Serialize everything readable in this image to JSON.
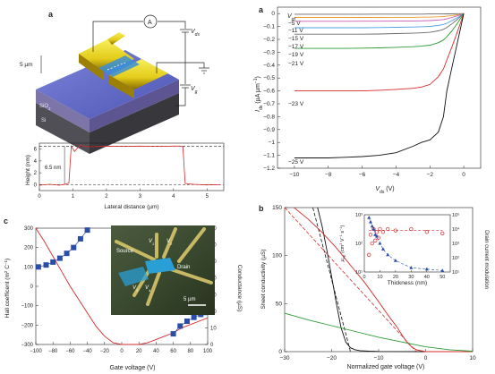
{
  "panel_labels": {
    "device_a": "a",
    "iv_a": "a",
    "hall_c": "c",
    "cond_b": "b"
  },
  "device_schematic": {
    "ammeter": "A",
    "vds_label": "V",
    "vds_sub": "ds",
    "vg_label": "V",
    "vg_sub": "g",
    "scale_label": "5 µm",
    "layer_sio2": "SiO",
    "layer_sio2_sub": "2",
    "layer_si": "Si"
  },
  "colors": {
    "hall_points": "#2a4ea8",
    "hall_curve": "#d62a2a",
    "accent_green": "#2a9a35",
    "black_curve": "#111111"
  },
  "chart_data": [
    {
      "id": "height_profile",
      "type": "line",
      "xlabel": "Lateral distance (µm)",
      "ylabel": "Height (nm)",
      "xlim": [
        0,
        5.5
      ],
      "ylim": [
        -1,
        7
      ],
      "xticks": [
        0,
        1,
        2,
        3,
        4,
        5
      ],
      "yticks": [
        0,
        2,
        4,
        6
      ],
      "annotation": "6.5 nm",
      "series": [
        {
          "color": "#d62a2a",
          "x": [
            0,
            0.3,
            0.6,
            0.8,
            0.88,
            0.95,
            1.05,
            1.2,
            1.5,
            2.0,
            2.5,
            3.0,
            3.5,
            4.0,
            4.2,
            4.28,
            4.35,
            4.6,
            5.0,
            5.4
          ],
          "y": [
            -0.1,
            0.05,
            -0.1,
            0.1,
            0.3,
            6.5,
            5.6,
            6.6,
            6.4,
            6.5,
            6.45,
            6.5,
            6.45,
            6.5,
            6.5,
            6.4,
            0.2,
            0.05,
            -0.05,
            0.0
          ]
        }
      ]
    },
    {
      "id": "output_curves",
      "type": "line",
      "xlabel": "V",
      "xlabel_sub": "ds",
      "xlabel_unit": " (V)",
      "ylabel": "I",
      "ylabel_sub": "ds",
      "ylabel_unit": " (µA µm",
      "ylabel_sup": "−1",
      "ylabel_close": ")",
      "legend_title": "V",
      "legend_title_sub": "gt",
      "xlim": [
        -11,
        1
      ],
      "ylim": [
        -1.2,
        0.05
      ],
      "xticks": [
        -10,
        -8,
        -6,
        -4,
        -2,
        0
      ],
      "yticks": [
        0,
        -0.1,
        -0.2,
        -0.3,
        -0.4,
        -0.5,
        -0.6,
        -0.7,
        -0.8,
        -0.9,
        -1.0,
        -1.1,
        -1.2
      ],
      "x": [
        -10,
        -9,
        -8,
        -7,
        -6,
        -5,
        -4,
        -3,
        -2.5,
        -2,
        -1.5,
        -1.2,
        -1,
        -0.7,
        -0.4,
        -0.2,
        0
      ],
      "series": [
        {
          "name": "−5 V",
          "color": "#666666",
          "y": [
            -0.005,
            -0.005,
            -0.005,
            -0.005,
            -0.005,
            -0.004,
            -0.004,
            -0.004,
            -0.004,
            -0.003,
            -0.003,
            -0.003,
            -0.002,
            -0.002,
            -0.001,
            -0.0005,
            0
          ]
        },
        {
          "name": "−11 V",
          "color": "#e89a2a",
          "y": [
            -0.03,
            -0.03,
            -0.03,
            -0.03,
            -0.03,
            -0.03,
            -0.029,
            -0.029,
            -0.028,
            -0.027,
            -0.025,
            -0.023,
            -0.02,
            -0.015,
            -0.009,
            -0.005,
            0
          ]
        },
        {
          "name": "−15 V",
          "color": "#c85ab4",
          "y": [
            -0.06,
            -0.06,
            -0.06,
            -0.06,
            -0.059,
            -0.059,
            -0.058,
            -0.057,
            -0.056,
            -0.054,
            -0.05,
            -0.046,
            -0.04,
            -0.03,
            -0.018,
            -0.009,
            0
          ]
        },
        {
          "name": "−17 V",
          "color": "#4aa0e8",
          "y": [
            -0.11,
            -0.11,
            -0.11,
            -0.11,
            -0.11,
            -0.108,
            -0.106,
            -0.104,
            -0.102,
            -0.099,
            -0.092,
            -0.084,
            -0.075,
            -0.055,
            -0.033,
            -0.017,
            0
          ]
        },
        {
          "name": "−19 V",
          "color": "#6a6a6a",
          "y": [
            -0.16,
            -0.16,
            -0.16,
            -0.16,
            -0.16,
            -0.158,
            -0.155,
            -0.152,
            -0.149,
            -0.145,
            -0.134,
            -0.122,
            -0.108,
            -0.08,
            -0.048,
            -0.024,
            0
          ]
        },
        {
          "name": "−21 V",
          "color": "#2a9a35",
          "y": [
            -0.27,
            -0.27,
            -0.27,
            -0.27,
            -0.268,
            -0.266,
            -0.262,
            -0.257,
            -0.253,
            -0.245,
            -0.226,
            -0.205,
            -0.18,
            -0.135,
            -0.08,
            -0.04,
            0
          ]
        },
        {
          "name": "−23 V",
          "color": "#d62a2a",
          "y": [
            -0.6,
            -0.6,
            -0.6,
            -0.6,
            -0.6,
            -0.595,
            -0.588,
            -0.58,
            -0.57,
            -0.55,
            -0.49,
            -0.43,
            -0.36,
            -0.26,
            -0.15,
            -0.075,
            0
          ]
        },
        {
          "name": "−25 V",
          "color": "#111111",
          "y": [
            -1.12,
            -1.12,
            -1.12,
            -1.115,
            -1.11,
            -1.1,
            -1.08,
            -1.03,
            -1.0,
            -0.98,
            -0.92,
            -0.8,
            -0.6,
            -0.42,
            -0.24,
            -0.12,
            0
          ]
        }
      ]
    },
    {
      "id": "hall_conductance",
      "type": "scatter",
      "xlabel": "Gate voltage (V)",
      "ylabel_left": "Hall coefficent (m",
      "ylabel_left_sup": "2",
      "ylabel_left_mid": " C",
      "ylabel_left_sup2": "−1",
      "ylabel_left_close": ")",
      "ylabel_right": "Conductance (µS)",
      "xlim": [
        -100,
        100
      ],
      "ylim_left": [
        -300,
        300
      ],
      "ylim_right": [
        0,
        70
      ],
      "xticks": [
        -100,
        -80,
        -60,
        -40,
        -20,
        0,
        20,
        40,
        60,
        80,
        100
      ],
      "yticks_left": [
        -300,
        -200,
        -100,
        0,
        100,
        200,
        300
      ],
      "yticks_right": [
        0,
        10,
        20,
        30,
        40,
        50,
        60,
        70
      ],
      "hall_series": {
        "x": [
          -97,
          -88,
          -80,
          -72,
          -64,
          -56,
          -48,
          -40,
          60,
          68,
          76,
          84,
          92,
          97
        ],
        "y": [
          100,
          110,
          125,
          145,
          170,
          200,
          245,
          290,
          -245,
          -205,
          -180,
          -160,
          -145,
          -135
        ]
      },
      "conductance_series": {
        "x": [
          -100,
          -90,
          -80,
          -70,
          -60,
          -50,
          -40,
          -30,
          -20,
          -10,
          0,
          10,
          20,
          30,
          40,
          50,
          60,
          70,
          80,
          90,
          100
        ],
        "y": [
          70,
          62,
          53,
          44,
          35,
          27,
          19,
          11,
          5,
          1,
          0,
          0,
          0,
          1,
          3,
          5,
          7,
          10,
          12,
          14,
          16
        ]
      },
      "inset_labels": {
        "source": "Source",
        "drain": "Drain",
        "v1": "V",
        "v1_sub": "1",
        "v2": "V",
        "v2_sub": "2",
        "v3": "V",
        "v3_sub": "3",
        "v4": "V",
        "v4_sub": "4",
        "scale": "5 µm"
      }
    },
    {
      "id": "sheet_conductivity",
      "type": "line",
      "xlabel": "Normalized gate voltage (V)",
      "ylabel": "Sheet conductivity (µS)",
      "xlim": [
        -30,
        10
      ],
      "ylim": [
        0,
        150
      ],
      "xticks": [
        -30,
        -20,
        -10,
        0,
        10
      ],
      "yticks": [
        0,
        50,
        100,
        150
      ],
      "series": [
        {
          "color": "#111111",
          "x": [
            -23,
            -22,
            -21,
            -20,
            -19,
            -18,
            -17,
            -16,
            -15,
            -14,
            -12,
            -10,
            0,
            10
          ],
          "y": [
            150,
            130,
            105,
            78,
            50,
            25,
            10,
            4,
            2,
            1,
            0.5,
            0.2,
            0,
            0
          ]
        },
        {
          "color": "#d62a2a",
          "x": [
            -28,
            -25,
            -22,
            -19,
            -16,
            -13,
            -10,
            -8,
            -6,
            -5,
            -4,
            -3,
            -2,
            0,
            10
          ],
          "y": [
            150,
            138,
            124,
            108,
            90,
            72,
            52,
            38,
            25,
            17,
            10,
            5,
            2,
            0,
            0
          ]
        },
        {
          "color": "#2a9a35",
          "x": [
            -30,
            -25,
            -20,
            -15,
            -10,
            -5,
            0,
            5,
            10
          ],
          "y": [
            40,
            33,
            27,
            21,
            15,
            10,
            5,
            2,
            0.5
          ]
        }
      ],
      "dashed_fits": [
        {
          "color": "#111111",
          "x": [
            -24,
            -16
          ],
          "y": [
            150,
            0
          ]
        },
        {
          "color": "#d62a2a",
          "x": [
            -30,
            -2
          ],
          "y": [
            150,
            0
          ]
        }
      ],
      "inset": {
        "xlabel": "Thickness (nm)",
        "ylabel_left": "μ",
        "ylabel_left_sub": "FE",
        "ylabel_left_unit": " (cm",
        "ylabel_left_sup": "2",
        "ylabel_left_mid": " V",
        "ylabel_left_sup2": "−1",
        "ylabel_left_mid2": " s",
        "ylabel_left_sup3": "−1",
        "ylabel_left_close": ")",
        "ylabel_right": "Drain current modulation",
        "xlim": [
          0,
          55
        ],
        "xticks": [
          0,
          10,
          20,
          30,
          40,
          50
        ],
        "yticks_left": [
          "10¹",
          "10²",
          "10³"
        ],
        "yticks_right": [
          "10¹",
          "10²",
          "10³",
          "10⁴",
          "10⁵"
        ],
        "mobility_points": {
          "x": [
            3,
            4,
            5,
            6,
            7,
            8,
            9,
            10,
            12,
            15,
            20,
            30,
            40,
            50
          ],
          "y_log": [
            1.6,
            2.3,
            2.0,
            2.5,
            2.1,
            2.4,
            2.2,
            2.5,
            2.4,
            2.5,
            2.45,
            2.5,
            2.4,
            2.35
          ]
        },
        "modulation_points": {
          "x": [
            3,
            4,
            5,
            6,
            7,
            8,
            10,
            12,
            15,
            20,
            30,
            40,
            50
          ],
          "y_log": [
            4.8,
            4.5,
            4.2,
            4.0,
            3.6,
            3.5,
            3.0,
            2.6,
            2.2,
            1.8,
            1.3,
            1.2,
            1.1
          ]
        }
      }
    }
  ]
}
